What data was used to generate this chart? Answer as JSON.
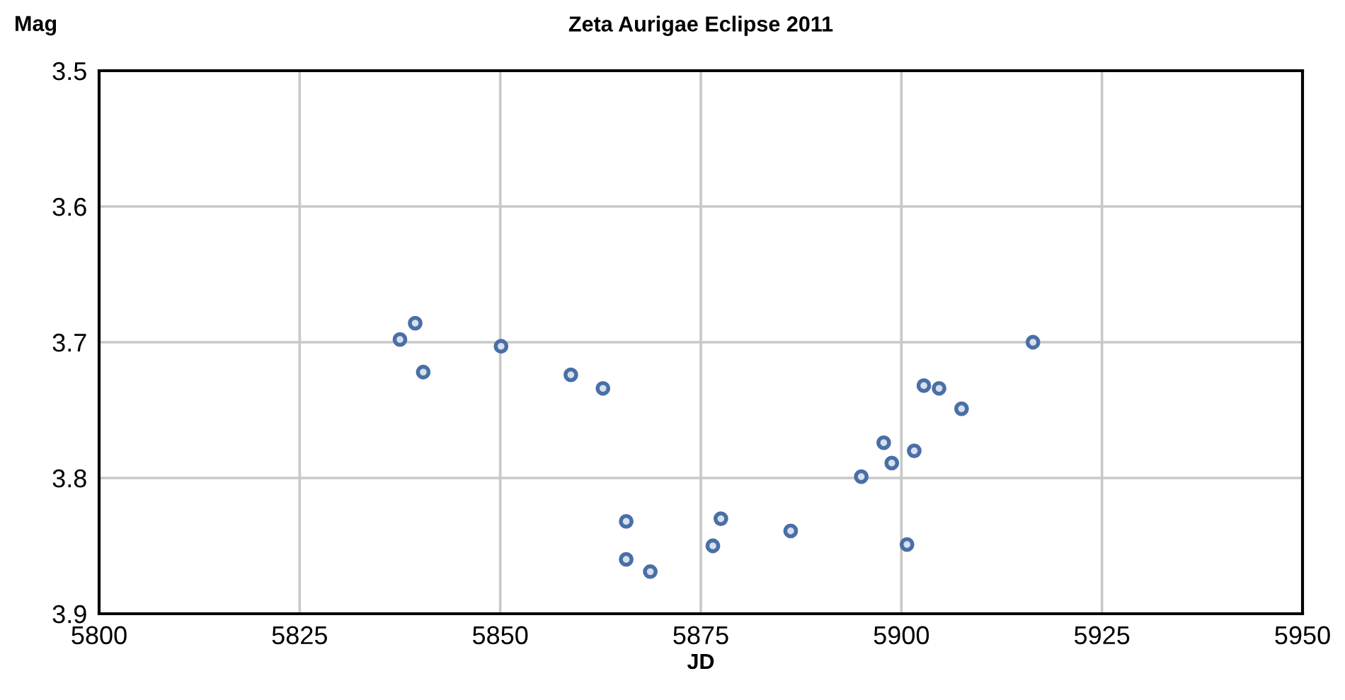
{
  "chart_data": {
    "type": "scatter",
    "title": "Zeta Aurigae Eclipse 2011",
    "xlabel": "JD",
    "ylabel": "Mag",
    "x": [
      5837.5,
      5839.4,
      5840.4,
      5850.1,
      5858.8,
      5862.8,
      5865.7,
      5865.7,
      5868.7,
      5876.5,
      5877.5,
      5886.2,
      5895.0,
      5897.8,
      5898.8,
      5901.6,
      5900.7,
      5902.8,
      5904.7,
      5907.5,
      5916.4
    ],
    "series": [
      {
        "color": "#4a6fa5",
        "values": [
          3.698,
          3.686,
          3.722,
          3.703,
          3.724,
          3.734,
          3.832,
          3.86,
          3.869,
          3.85,
          3.83,
          3.839,
          3.799,
          3.774,
          3.789,
          3.78,
          3.849,
          3.732,
          3.734,
          3.749,
          3.7
        ]
      }
    ],
    "xlim": [
      5800,
      5950
    ],
    "xticks": [
      5800,
      5825,
      5850,
      5875,
      5900,
      5925,
      5950
    ],
    "ylim": [
      3.9,
      3.5
    ],
    "yticks": [
      {
        "value": 3.5,
        "label": "3.5"
      },
      {
        "value": 3.6,
        "label": "3.6"
      },
      {
        "value": 3.7,
        "label": "3.7"
      },
      {
        "value": 3.8,
        "label": "3.8"
      },
      {
        "value": 3.9,
        "label": "3.9"
      }
    ],
    "grid": true,
    "marker": "circle"
  }
}
